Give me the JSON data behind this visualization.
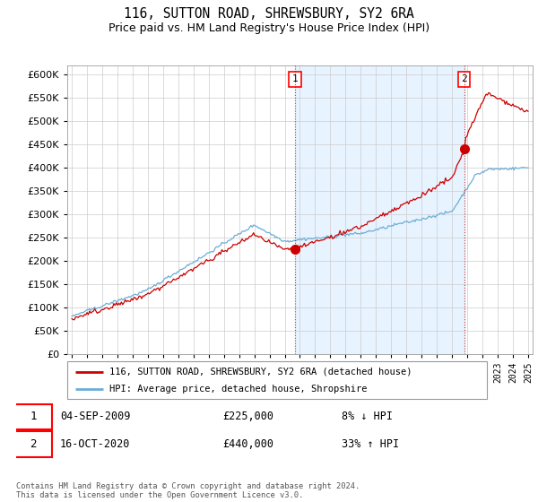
{
  "title": "116, SUTTON ROAD, SHREWSBURY, SY2 6RA",
  "subtitle": "Price paid vs. HM Land Registry's House Price Index (HPI)",
  "legend_line1": "116, SUTTON ROAD, SHREWSBURY, SY2 6RA (detached house)",
  "legend_line2": "HPI: Average price, detached house, Shropshire",
  "annotation1_date": "04-SEP-2009",
  "annotation1_price": "£225,000",
  "annotation1_hpi": "8% ↓ HPI",
  "annotation2_date": "16-OCT-2020",
  "annotation2_price": "£440,000",
  "annotation2_hpi": "33% ↑ HPI",
  "footer": "Contains HM Land Registry data © Crown copyright and database right 2024.\nThis data is licensed under the Open Government Licence v3.0.",
  "hpi_color": "#6baed6",
  "price_color": "#cc0000",
  "marker_color": "#cc0000",
  "bg_between_color": "#ddeeff",
  "background_color": "#ffffff",
  "grid_color": "#cccccc",
  "ylim": [
    0,
    620000
  ],
  "yticks": [
    0,
    50000,
    100000,
    150000,
    200000,
    250000,
    300000,
    350000,
    400000,
    450000,
    500000,
    550000,
    600000
  ],
  "sale1_x": 2009.67,
  "sale1_y": 225000,
  "sale2_x": 2020.79,
  "sale2_y": 440000,
  "vline1_x": 2009.67,
  "vline2_x": 2020.79,
  "xmin": 1995.0,
  "xmax": 2025.0
}
